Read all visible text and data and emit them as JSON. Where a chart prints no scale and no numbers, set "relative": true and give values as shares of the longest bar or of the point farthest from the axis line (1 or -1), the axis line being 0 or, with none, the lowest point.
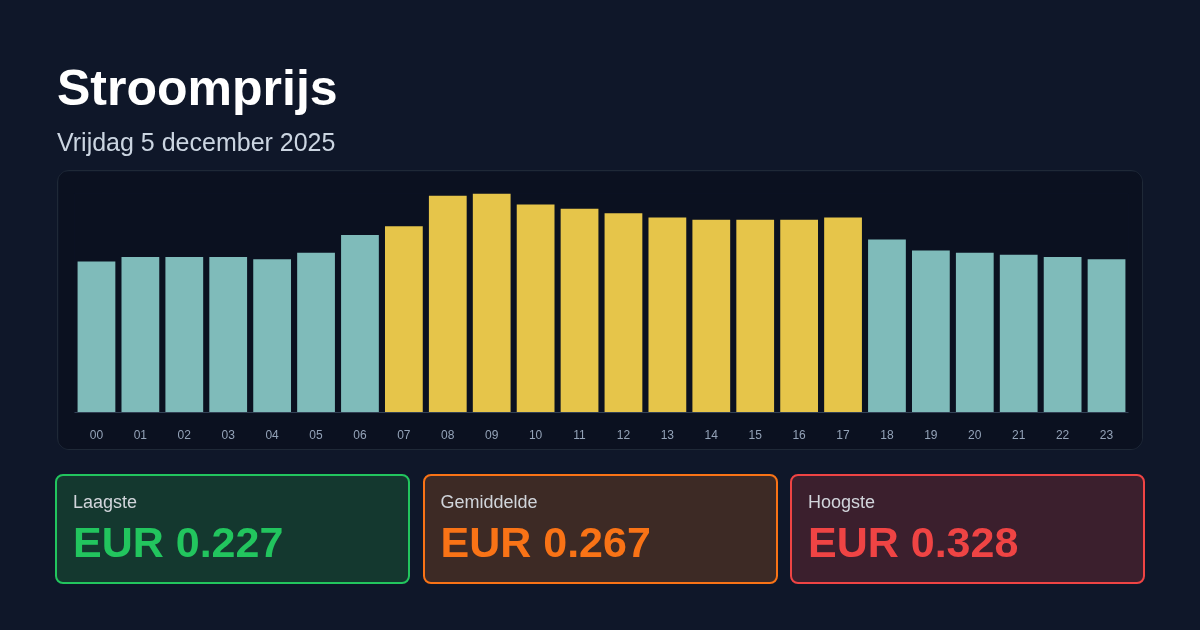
{
  "chart_data": {
    "type": "bar",
    "title": "Stroomprijs",
    "subtitle": "Vrijdag 5 december 2025",
    "relative": true,
    "categories": [
      "00",
      "01",
      "02",
      "03",
      "04",
      "05",
      "06",
      "07",
      "08",
      "09",
      "10",
      "11",
      "12",
      "13",
      "14",
      "15",
      "16",
      "17",
      "18",
      "19",
      "20",
      "21",
      "22",
      "23"
    ],
    "values": [
      0.69,
      0.71,
      0.71,
      0.71,
      0.7,
      0.73,
      0.81,
      0.85,
      0.99,
      1,
      0.95,
      0.93,
      0.91,
      0.89,
      0.88,
      0.88,
      0.88,
      0.89,
      0.79,
      0.74,
      0.73,
      0.72,
      0.71,
      0.7
    ],
    "colors": [
      "#7fbbba",
      "#7fbbba",
      "#7fbbba",
      "#7fbbba",
      "#7fbbba",
      "#7fbbba",
      "#7fbbba",
      "#e6c54a",
      "#e6c54a",
      "#e6c54a",
      "#e6c54a",
      "#e6c54a",
      "#e6c54a",
      "#e6c54a",
      "#e6c54a",
      "#e6c54a",
      "#e6c54a",
      "#e6c54a",
      "#7fbbba",
      "#7fbbba",
      "#7fbbba",
      "#7fbbba",
      "#7fbbba",
      "#7fbbba"
    ],
    "annotations": [
      "Laagste",
      "EUR 0.227",
      "Gemiddelde",
      "EUR 0.267",
      "Hoogste",
      "EUR 0.328"
    ]
  }
}
